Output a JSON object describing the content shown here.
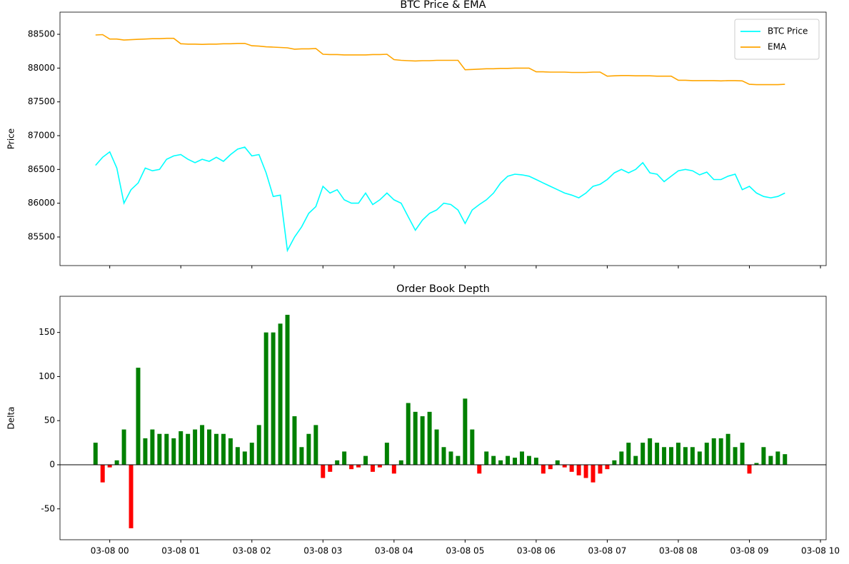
{
  "chart_data": [
    {
      "type": "line",
      "title": "BTC Price & EMA",
      "y_label": "Price",
      "x": [
        -0.2,
        -0.1,
        0,
        0.1,
        0.2,
        0.3,
        0.4,
        0.5,
        0.6,
        0.7,
        0.8,
        0.9,
        1,
        1.1,
        1.2,
        1.3,
        1.4,
        1.5,
        1.6,
        1.7,
        1.8,
        1.9,
        2,
        2.1,
        2.2,
        2.3,
        2.4,
        2.5,
        2.6,
        2.7,
        2.8,
        2.9,
        3,
        3.1,
        3.2,
        3.3,
        3.4,
        3.5,
        3.6,
        3.7,
        3.8,
        3.9,
        4,
        4.1,
        4.2,
        4.3,
        4.4,
        4.5,
        4.6,
        4.7,
        4.8,
        4.9,
        5,
        5.1,
        5.2,
        5.3,
        5.4,
        5.5,
        5.6,
        5.7,
        5.8,
        5.9,
        6,
        6.1,
        6.2,
        6.3,
        6.4,
        6.5,
        6.6,
        6.7,
        6.8,
        6.9,
        7,
        7.1,
        7.2,
        7.3,
        7.4,
        7.5,
        7.6,
        7.7,
        7.8,
        7.9,
        8,
        8.1,
        8.2,
        8.3,
        8.4,
        8.5,
        8.6,
        8.7,
        8.8,
        8.9,
        9,
        9.1,
        9.2,
        9.3,
        9.4,
        9.5
      ],
      "series": [
        {
          "name": "BTC Price",
          "color": "#00ffff",
          "values": [
            86560,
            86680,
            86760,
            86520,
            86000,
            86200,
            86300,
            86520,
            86480,
            86500,
            86650,
            86700,
            86720,
            86650,
            86600,
            86650,
            86620,
            86680,
            86620,
            86720,
            86800,
            86830,
            86700,
            86720,
            86450,
            86100,
            86120,
            85300,
            85500,
            85650,
            85850,
            85950,
            86250,
            86150,
            86200,
            86050,
            86000,
            86000,
            86150,
            85980,
            86050,
            86150,
            86050,
            86000,
            85800,
            85600,
            85750,
            85850,
            85900,
            86000,
            85980,
            85900,
            85700,
            85900,
            85980,
            86050,
            86150,
            86300,
            86400,
            86430,
            86420,
            86400,
            86350,
            86300,
            86250,
            86200,
            86150,
            86120,
            86080,
            86150,
            86250,
            86280,
            86350,
            86450,
            86500,
            86450,
            86500,
            86600,
            86450,
            86430,
            86320,
            86400,
            86480,
            86500,
            86480,
            86420,
            86460,
            86350,
            86350,
            86400,
            86430,
            86200,
            86250,
            86150,
            86100,
            86080,
            86100,
            86150
          ]
        },
        {
          "name": "EMA",
          "color": "#ffa500",
          "values": [
            88490,
            88495,
            88430,
            88430,
            88415,
            88420,
            88425,
            88430,
            88435,
            88435,
            88440,
            88440,
            88360,
            88355,
            88355,
            88350,
            88355,
            88355,
            88360,
            88360,
            88365,
            88365,
            88330,
            88325,
            88315,
            88310,
            88305,
            88300,
            88280,
            88285,
            88285,
            88290,
            88205,
            88200,
            88200,
            88195,
            88195,
            88195,
            88195,
            88200,
            88200,
            88205,
            88125,
            88115,
            88110,
            88105,
            88110,
            88110,
            88115,
            88115,
            88115,
            88115,
            87975,
            87980,
            87985,
            87990,
            87990,
            87995,
            87995,
            88000,
            88000,
            88000,
            87945,
            87945,
            87940,
            87940,
            87940,
            87935,
            87935,
            87935,
            87940,
            87940,
            87880,
            87885,
            87890,
            87890,
            87885,
            87885,
            87885,
            87880,
            87880,
            87880,
            87820,
            87820,
            87815,
            87815,
            87815,
            87815,
            87810,
            87815,
            87815,
            87810,
            87760,
            87755,
            87755,
            87755,
            87755,
            87760
          ]
        }
      ],
      "xlim": [
        -0.7,
        10.08
      ],
      "ylim": [
        85077,
        88828
      ],
      "yticks": [
        85500,
        86000,
        86500,
        87000,
        87500,
        88000,
        88500
      ],
      "legend": "upper right"
    },
    {
      "type": "bar",
      "title": "Order Book Depth",
      "y_label": "Delta",
      "x": [
        -0.2,
        -0.1,
        0,
        0.1,
        0.2,
        0.3,
        0.4,
        0.5,
        0.6,
        0.7,
        0.8,
        0.9,
        1,
        1.1,
        1.2,
        1.3,
        1.4,
        1.5,
        1.6,
        1.7,
        1.8,
        1.9,
        2,
        2.1,
        2.2,
        2.3,
        2.4,
        2.5,
        2.6,
        2.7,
        2.8,
        2.9,
        3,
        3.1,
        3.2,
        3.3,
        3.4,
        3.5,
        3.6,
        3.7,
        3.8,
        3.9,
        4,
        4.1,
        4.2,
        4.3,
        4.4,
        4.5,
        4.6,
        4.7,
        4.8,
        4.9,
        5,
        5.1,
        5.2,
        5.3,
        5.4,
        5.5,
        5.6,
        5.7,
        5.8,
        5.9,
        6,
        6.1,
        6.2,
        6.3,
        6.4,
        6.5,
        6.6,
        6.7,
        6.8,
        6.9,
        7,
        7.1,
        7.2,
        7.3,
        7.4,
        7.5,
        7.6,
        7.7,
        7.8,
        7.9,
        8,
        8.1,
        8.2,
        8.3,
        8.4,
        8.5,
        8.6,
        8.7,
        8.8,
        8.9,
        9,
        9.1,
        9.2,
        9.3,
        9.4,
        9.5
      ],
      "values": [
        25,
        -20,
        -3,
        5,
        40,
        -72,
        110,
        30,
        40,
        35,
        35,
        30,
        38,
        35,
        40,
        45,
        40,
        35,
        35,
        30,
        20,
        15,
        25,
        45,
        150,
        150,
        160,
        170,
        55,
        20,
        35,
        45,
        -15,
        -8,
        5,
        15,
        -5,
        -3,
        10,
        -8,
        -3,
        25,
        -10,
        5,
        70,
        60,
        55,
        60,
        40,
        20,
        15,
        10,
        75,
        40,
        -10,
        15,
        10,
        5,
        10,
        8,
        15,
        10,
        8,
        -10,
        -5,
        5,
        -3,
        -8,
        -12,
        -15,
        -20,
        -10,
        -5,
        5,
        15,
        25,
        10,
        25,
        30,
        25,
        20,
        20,
        25,
        20,
        20,
        15,
        25,
        30,
        30,
        35,
        20,
        25,
        -10,
        2,
        20,
        10,
        15,
        12
      ],
      "positive_color": "#008000",
      "negative_color": "#ff0000",
      "xlim": [
        -0.7,
        10.08
      ],
      "ylim": [
        -85,
        191
      ],
      "xticks": [
        {
          "value": 0,
          "label": "03-08 00"
        },
        {
          "value": 1,
          "label": "03-08 01"
        },
        {
          "value": 2,
          "label": "03-08 02"
        },
        {
          "value": 3,
          "label": "03-08 03"
        },
        {
          "value": 4,
          "label": "03-08 04"
        },
        {
          "value": 5,
          "label": "03-08 05"
        },
        {
          "value": 6,
          "label": "03-08 06"
        },
        {
          "value": 7,
          "label": "03-08 07"
        },
        {
          "value": 8,
          "label": "03-08 08"
        },
        {
          "value": 9,
          "label": "03-08 09"
        },
        {
          "value": 10,
          "label": "03-08 10"
        }
      ],
      "yticks": [
        -50,
        0,
        50,
        100,
        150
      ],
      "baseline": true
    }
  ]
}
